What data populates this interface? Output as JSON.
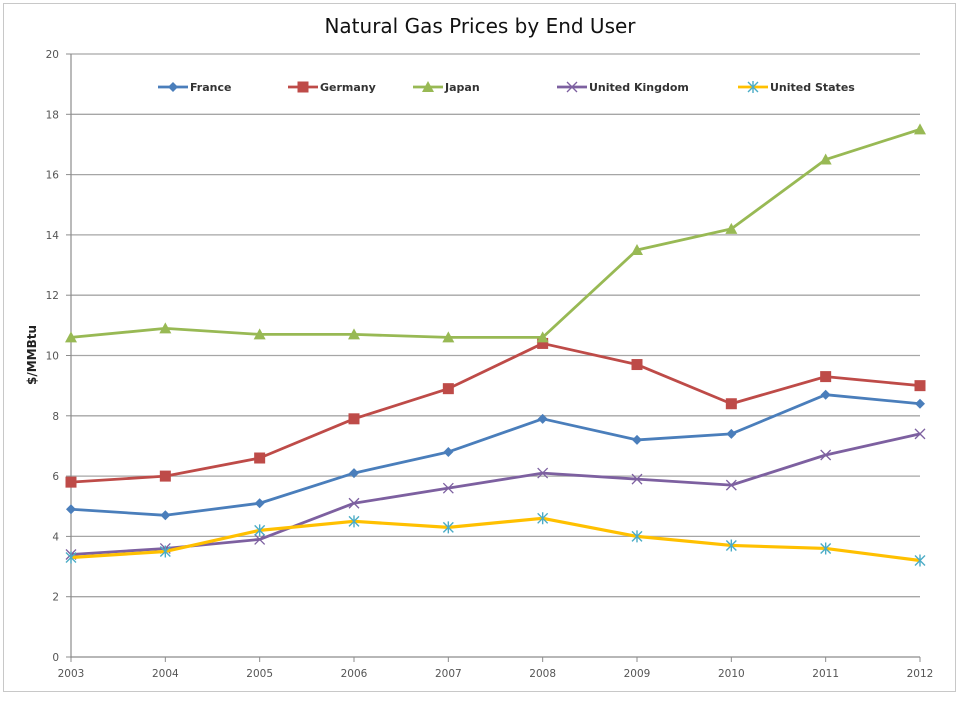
{
  "chart_data": {
    "type": "line",
    "title": "Natural Gas Prices by End User",
    "xlabel": "",
    "ylabel": "$/MMBtu",
    "x": [
      "2003",
      "2004",
      "2005",
      "2006",
      "2007",
      "2008",
      "2009",
      "2010",
      "2011",
      "2012"
    ],
    "ylim": [
      0,
      20
    ],
    "yticks": [
      0,
      2,
      4,
      6,
      8,
      10,
      12,
      14,
      16,
      18,
      20
    ],
    "grid": true,
    "legend_position": "top",
    "series": [
      {
        "name": "France",
        "color": "#4a7ebb",
        "marker": "diamond",
        "values": [
          4.9,
          4.7,
          5.1,
          6.1,
          6.8,
          7.9,
          7.2,
          7.4,
          8.7,
          8.4
        ]
      },
      {
        "name": "Germany",
        "color": "#be4b48",
        "marker": "square",
        "values": [
          5.8,
          6.0,
          6.6,
          7.9,
          8.9,
          10.4,
          9.7,
          8.4,
          9.3,
          9.0
        ]
      },
      {
        "name": "Japan",
        "color": "#98b954",
        "marker": "triangle",
        "values": [
          10.6,
          10.9,
          10.7,
          10.7,
          10.6,
          10.6,
          13.5,
          14.2,
          16.5,
          17.5
        ]
      },
      {
        "name": "United Kingdom",
        "color": "#7d60a0",
        "marker": "x",
        "values": [
          3.4,
          3.6,
          3.9,
          5.1,
          5.6,
          6.1,
          5.9,
          5.7,
          6.7,
          7.4
        ]
      },
      {
        "name": "United States",
        "color": "#ffc000",
        "marker_color": "#4bacc6",
        "marker": "star",
        "values": [
          3.3,
          3.5,
          4.2,
          4.5,
          4.3,
          4.6,
          4.0,
          3.7,
          3.6,
          3.2
        ]
      }
    ]
  }
}
